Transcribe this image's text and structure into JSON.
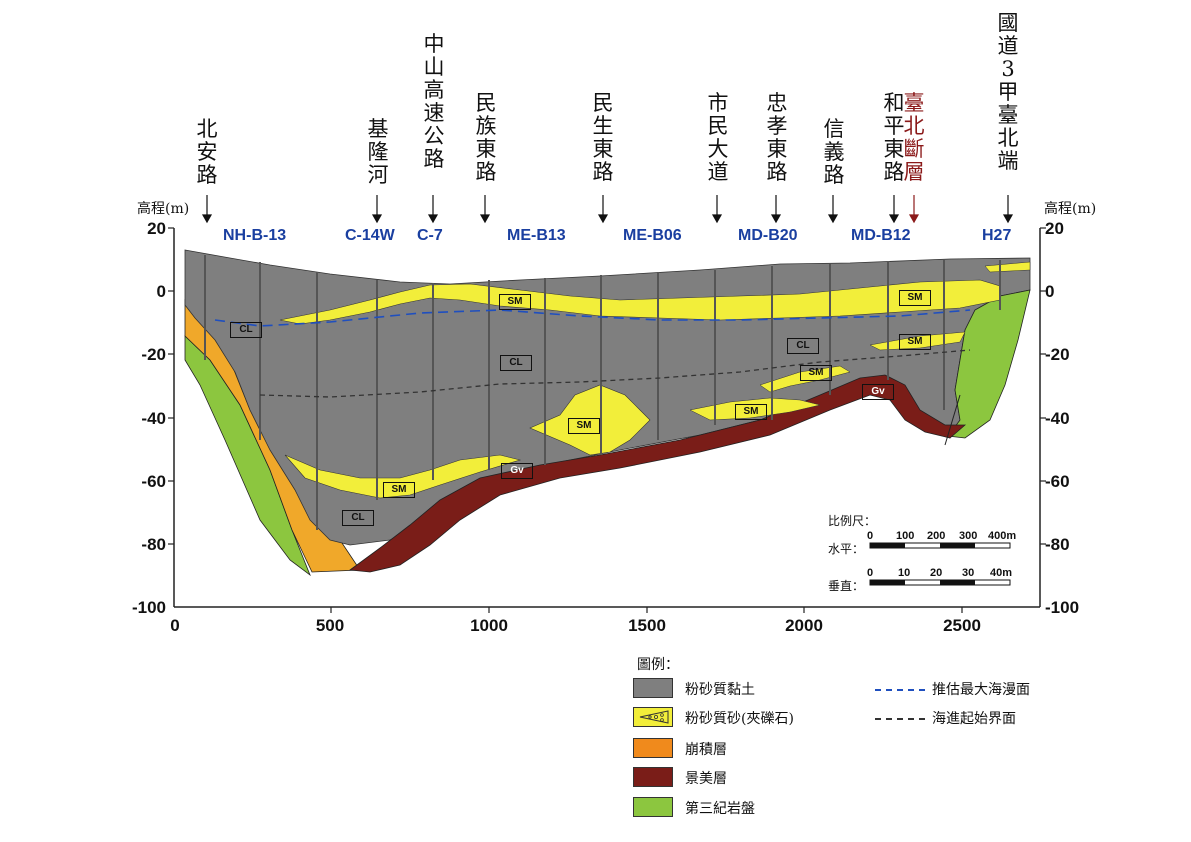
{
  "roads": [
    {
      "id": "beian",
      "text": "北安路",
      "red": false
    },
    {
      "id": "keelung",
      "text": "基隆河",
      "red": false
    },
    {
      "id": "zhongshan",
      "text": "中山高速公路",
      "red": false
    },
    {
      "id": "minzu",
      "text": "民族東路",
      "red": false
    },
    {
      "id": "minsheng",
      "text": "民生東路",
      "red": false
    },
    {
      "id": "civic",
      "text": "市民大道",
      "red": false
    },
    {
      "id": "zhongxiao",
      "text": "忠孝東路",
      "red": false
    },
    {
      "id": "xinyi",
      "text": "信義路",
      "red": false
    },
    {
      "id": "heping",
      "text": "和平東路",
      "red": false
    },
    {
      "id": "fault",
      "text": "臺北斷層",
      "red": true
    },
    {
      "id": "freeway3",
      "text": "國道3甲臺北端",
      "red": false
    }
  ],
  "boreholes": [
    "NH-B-13",
    "C-14W",
    "C-7",
    "ME-B13",
    "ME-B06",
    "MD-B20",
    "MD-B12",
    "H27"
  ],
  "axes": {
    "y_label_left": "高程(m)",
    "y_label_right": "高程(m)",
    "y_ticks": [
      "20",
      "0",
      "-20",
      "-40",
      "-60",
      "-80",
      "-100"
    ],
    "x_ticks": [
      "0",
      "500",
      "1000",
      "1500",
      "2000",
      "2500"
    ]
  },
  "layer_labels": [
    "CL",
    "SM",
    "CL",
    "SM",
    "CL",
    "SM",
    "SM",
    "SM",
    "SM",
    "CL",
    "SM",
    "Gv",
    "Gv"
  ],
  "scale": {
    "title": "比例尺：",
    "horizontal_label": "水平：",
    "horizontal_ticks": [
      "0",
      "100",
      "200",
      "300",
      "400m"
    ],
    "vertical_label": "垂直：",
    "vertical_ticks": [
      "0",
      "10",
      "20",
      "30",
      "40m"
    ]
  },
  "legend": {
    "title": "圖例：",
    "items": [
      {
        "label": "粉砂質黏土",
        "color": "#7f7f7f"
      },
      {
        "label": "粉砂質砂(夾礫石)",
        "color": "#f2ee3a"
      },
      {
        "label": "崩積層",
        "color": "#f08a1c"
      },
      {
        "label": "景美層",
        "color": "#7a1d18"
      },
      {
        "label": "第三紀岩盤",
        "color": "#8cc63f"
      }
    ],
    "lines": [
      {
        "label": "推估最大海漫面",
        "color": "#1f4fbf"
      },
      {
        "label": "海進起始界面",
        "color": "#333333"
      }
    ]
  },
  "colors": {
    "clay": "#7f7f7f",
    "sand": "#f2ee3a",
    "colluvium": "#f0a82a",
    "jingmei": "#7a1d18",
    "bedrock": "#8cc63f",
    "borehole_blue": "#1a3fa0",
    "fault_red": "#8b1a1a"
  }
}
